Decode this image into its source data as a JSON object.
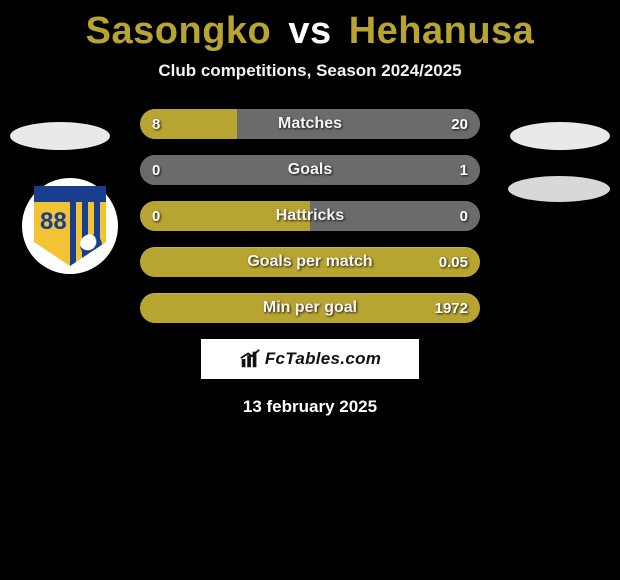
{
  "title": {
    "player1": "Sasongko",
    "vs": "vs",
    "player2": "Hehanusa"
  },
  "title_color": "#b8a430",
  "subtitle": "Club competitions, Season 2024/2025",
  "colors": {
    "left_series": "#b8a430",
    "right_series": "#6b6b6b",
    "background": "#000000"
  },
  "crest": {
    "number": "88"
  },
  "stats": [
    {
      "label": "Matches",
      "left_val": "8",
      "right_val": "20",
      "left_pct": 28.6,
      "right_pct": 71.4
    },
    {
      "label": "Goals",
      "left_val": "0",
      "right_val": "1",
      "left_pct": 0,
      "right_pct": 100
    },
    {
      "label": "Hattricks",
      "left_val": "0",
      "right_val": "0",
      "left_pct": 50,
      "right_pct": 50
    },
    {
      "label": "Goals per match",
      "left_val": "",
      "right_val": "0.05",
      "left_pct": 0,
      "right_pct": 100,
      "full_gold": true
    },
    {
      "label": "Min per goal",
      "left_val": "",
      "right_val": "1972",
      "left_pct": 0,
      "right_pct": 100,
      "full_gold": true
    }
  ],
  "logo_text": "FcTables.com",
  "date": "13 february 2025"
}
